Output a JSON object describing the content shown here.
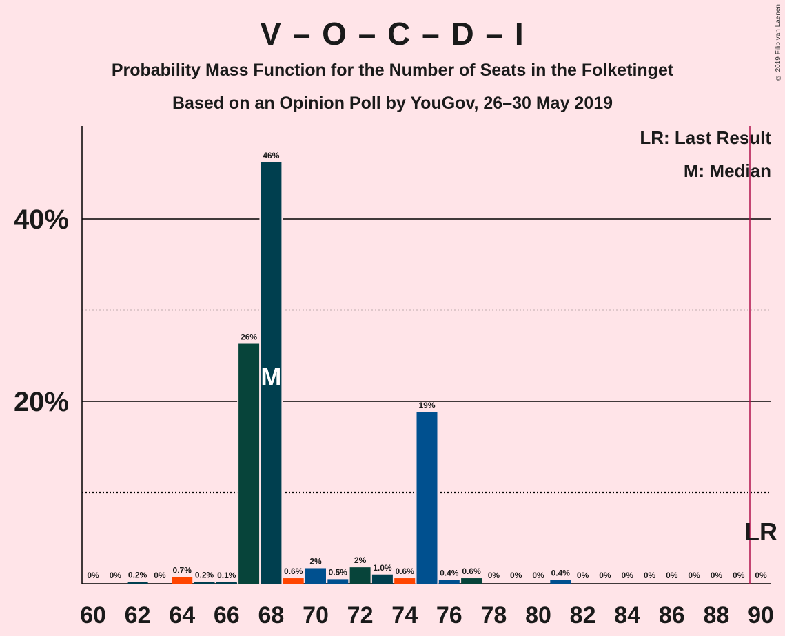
{
  "title": "V – O – C – D – I",
  "subtitle": "Probability Mass Function for the Number of Seats in the Folketinget",
  "subtitle2": "Based on an Opinion Poll by YouGov, 26–30 May 2019",
  "copyright": "© 2019 Filip van Laenen",
  "legend": {
    "lr": "LR: Last Result",
    "median": "M: Median"
  },
  "markers": {
    "median_label": "M",
    "median_seat": 68,
    "lr_label": "LR",
    "lr_seat": 90
  },
  "colors": {
    "background": "#FFE4E8",
    "dark_green": "#07443A",
    "dark_teal": "#003F4F",
    "blue": "#00508F",
    "orange": "#FF4500",
    "lr_line": "#B0104A"
  },
  "chart_data": {
    "type": "bar",
    "x": [
      60,
      61,
      62,
      63,
      64,
      65,
      66,
      67,
      68,
      69,
      70,
      71,
      72,
      73,
      74,
      75,
      76,
      77,
      78,
      79,
      80,
      81,
      82,
      83,
      84,
      85,
      86,
      87,
      88,
      89,
      90
    ],
    "values": [
      0,
      0,
      0.2,
      0,
      0.7,
      0.2,
      0.1,
      26.3,
      46.2,
      0.6,
      1.7,
      0.5,
      1.8,
      1.0,
      0.6,
      18.8,
      0.4,
      0.6,
      0,
      0,
      0,
      0.4,
      0,
      0,
      0,
      0,
      0,
      0,
      0,
      0,
      0
    ],
    "data_labels": [
      "0%",
      "0%",
      "0.2%",
      "0%",
      "0.7%",
      "0.2%",
      "0.1%",
      "26%",
      "46%",
      "0.6%",
      "2%",
      "0.5%",
      "2%",
      "1.0%",
      "0.6%",
      "19%",
      "0.4%",
      "0.6%",
      "0%",
      "0%",
      "0%",
      "0.4%",
      "0%",
      "0%",
      "0%",
      "0%",
      "0%",
      "0%",
      "0%",
      "0%",
      "0%"
    ],
    "bar_colors": [
      "",
      "",
      "#003F4F",
      "",
      "#FF4500",
      "#003F4F",
      "#003F4F",
      "#07443A",
      "#003F4F",
      "#FF4500",
      "#00508F",
      "#00508F",
      "#07443A",
      "#003F4F",
      "#FF4500",
      "#00508F",
      "#00508F",
      "#07443A",
      "",
      "",
      "",
      "#00508F",
      "",
      "",
      "",
      "",
      "",
      "",
      "",
      "",
      ""
    ],
    "x_ticks": [
      "60",
      "62",
      "64",
      "66",
      "68",
      "70",
      "72",
      "74",
      "76",
      "78",
      "80",
      "82",
      "84",
      "86",
      "88",
      "90"
    ],
    "y_ticks": [
      "20%",
      "40%"
    ],
    "ylim": [
      0,
      50
    ],
    "grid": {
      "solid": [
        20,
        40
      ],
      "dotted": [
        10,
        30
      ]
    }
  }
}
